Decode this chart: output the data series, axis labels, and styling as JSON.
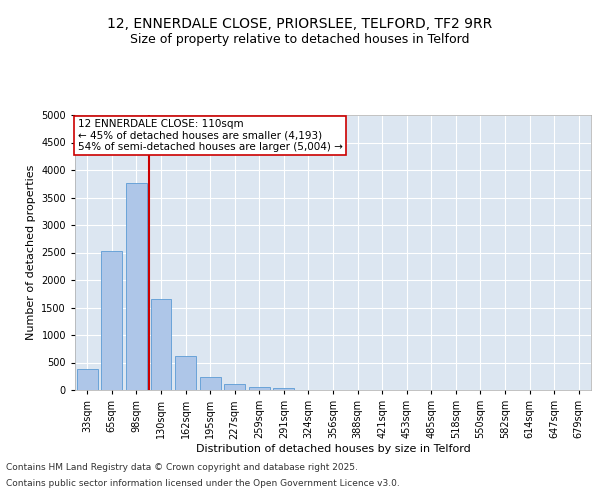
{
  "title_line1": "12, ENNERDALE CLOSE, PRIORSLEE, TELFORD, TF2 9RR",
  "title_line2": "Size of property relative to detached houses in Telford",
  "xlabel": "Distribution of detached houses by size in Telford",
  "ylabel": "Number of detached properties",
  "categories": [
    "33sqm",
    "65sqm",
    "98sqm",
    "130sqm",
    "162sqm",
    "195sqm",
    "227sqm",
    "259sqm",
    "291sqm",
    "324sqm",
    "356sqm",
    "388sqm",
    "421sqm",
    "453sqm",
    "485sqm",
    "518sqm",
    "550sqm",
    "582sqm",
    "614sqm",
    "647sqm",
    "679sqm"
  ],
  "values": [
    390,
    2530,
    3770,
    1650,
    610,
    235,
    110,
    55,
    30,
    0,
    0,
    0,
    0,
    0,
    0,
    0,
    0,
    0,
    0,
    0,
    0
  ],
  "bar_color": "#aec6e8",
  "bar_edge_color": "#5b9bd5",
  "redline_color": "#cc0000",
  "annotation_text": "12 ENNERDALE CLOSE: 110sqm\n← 45% of detached houses are smaller (4,193)\n54% of semi-detached houses are larger (5,004) →",
  "annotation_box_color": "#ffffff",
  "annotation_box_edge": "#cc0000",
  "ylim": [
    0,
    5000
  ],
  "yticks": [
    0,
    500,
    1000,
    1500,
    2000,
    2500,
    3000,
    3500,
    4000,
    4500,
    5000
  ],
  "fig_background": "#ffffff",
  "plot_background": "#dce6f1",
  "grid_color": "#ffffff",
  "footer_line1": "Contains HM Land Registry data © Crown copyright and database right 2025.",
  "footer_line2": "Contains public sector information licensed under the Open Government Licence v3.0.",
  "title_fontsize": 10,
  "subtitle_fontsize": 9,
  "axis_label_fontsize": 8,
  "tick_fontsize": 7,
  "annotation_fontsize": 7.5,
  "footer_fontsize": 6.5
}
